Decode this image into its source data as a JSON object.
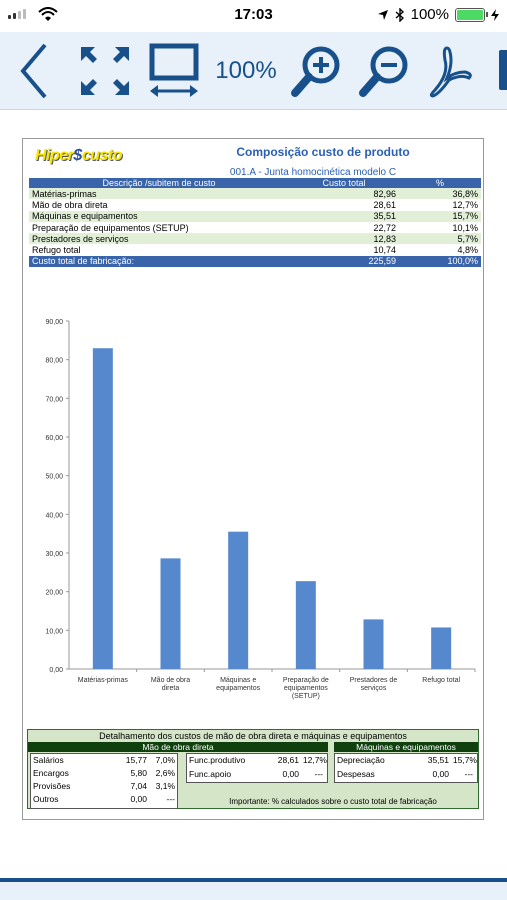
{
  "status": {
    "time": "17:03",
    "battery": "100%"
  },
  "toolbar": {
    "zoom": "100%"
  },
  "logo": "Hipercusto",
  "doc": {
    "title": "Composição custo de produto",
    "subtitle": "001.A - Junta homocinética modelo C",
    "headers": [
      "Descrição /subitem de custo",
      "Custo total",
      "%"
    ],
    "rows": [
      [
        "Matérias-primas",
        "82,96",
        "36,8%"
      ],
      [
        "Mão de obra direta",
        "28,61",
        "12,7%"
      ],
      [
        "Máquinas e equipamentos",
        "35,51",
        "15,7%"
      ],
      [
        "Preparação de equipamentos (SETUP)",
        "22,72",
        "10,1%"
      ],
      [
        "Prestadores de serviços",
        "12,83",
        "5,7%"
      ],
      [
        "Refugo total",
        "10,74",
        "4,8%"
      ]
    ],
    "total": [
      "Custo total de fabricação:",
      "225,59",
      "100,0%"
    ]
  },
  "chart_data": {
    "type": "bar",
    "categories": [
      [
        "Matérias-primas"
      ],
      [
        "Mão de obra",
        "direta"
      ],
      [
        "Máquinas e",
        "equipamentos"
      ],
      [
        "Preparação de",
        "equipamentos",
        "(SETUP)"
      ],
      [
        "Prestadores de",
        "serviços"
      ],
      [
        "Refugo total"
      ]
    ],
    "values": [
      82.96,
      28.61,
      35.51,
      22.72,
      12.83,
      10.74
    ],
    "ylim": [
      0,
      90
    ],
    "yticks": [
      "0,00",
      "10,00",
      "20,00",
      "30,00",
      "40,00",
      "50,00",
      "60,00",
      "70,00",
      "80,00",
      "90,00"
    ],
    "color": "#5588cc",
    "grid": false
  },
  "detail": {
    "title": "Detalhamento dos custos de mão de obra direta e máquinas e equipamentos",
    "labor_header": "Mão de obra direta",
    "machine_header": "Máquinas e equipamentos",
    "labor_rows": [
      [
        "Salários",
        "15,77",
        "7,0%"
      ],
      [
        "Encargos",
        "5,80",
        "2,6%"
      ],
      [
        "Provisões",
        "7,04",
        "3,1%"
      ],
      [
        "Outros",
        "0,00",
        "---"
      ]
    ],
    "func_rows": [
      [
        "Func.produtivo",
        "28,61",
        "12,7%"
      ],
      [
        "Func.apoio",
        "0,00",
        "---"
      ]
    ],
    "machine_rows": [
      [
        "Depreciação",
        "35,51",
        "15,7%"
      ],
      [
        "Despesas",
        "0,00",
        "---"
      ]
    ],
    "note": "Importante: % calculados sobre o custo total de fabricação"
  }
}
